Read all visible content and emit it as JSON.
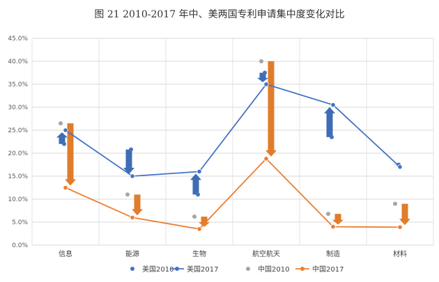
{
  "chart_data": {
    "type": "line",
    "title": "图 21  2010-2017 年中、美两国专利申请集中度变化对比",
    "categories": [
      "信息",
      "能源",
      "生物",
      "航空航天",
      "制造",
      "材料"
    ],
    "yticks": [
      "0.0%",
      "5.0%",
      "10.0%",
      "15.0%",
      "20.0%",
      "25.0%",
      "30.0%",
      "35.0%",
      "40.0%",
      "45.0%"
    ],
    "ylim": [
      0,
      45
    ],
    "grid": true,
    "legend_position": "bottom",
    "series": [
      {
        "name": "美国2010",
        "style": "markers",
        "color": "#4472C4",
        "values": [
          22.0,
          20.8,
          11.0,
          37.5,
          23.5,
          17.5
        ]
      },
      {
        "name": "美国2017",
        "style": "line",
        "color": "#4472C4",
        "values": [
          25.0,
          15.0,
          16.0,
          35.0,
          30.5,
          17.0
        ]
      },
      {
        "name": "中国2010",
        "style": "markers",
        "color": "#A5A5A5",
        "values": [
          26.5,
          11.0,
          6.2,
          40.0,
          6.8,
          9.0
        ]
      },
      {
        "name": "中国2017",
        "style": "line",
        "color": "#ED7D31",
        "values": [
          12.5,
          6.0,
          3.5,
          18.8,
          4.0,
          3.9
        ]
      }
    ],
    "change_arrows": {
      "blue": {
        "color": "#3E6DB5",
        "series_from": "美国2010",
        "series_to": "美国2017"
      },
      "orange": {
        "color": "#E07C2A",
        "series_from": "中国2010",
        "series_to": "中国2017"
      }
    }
  }
}
